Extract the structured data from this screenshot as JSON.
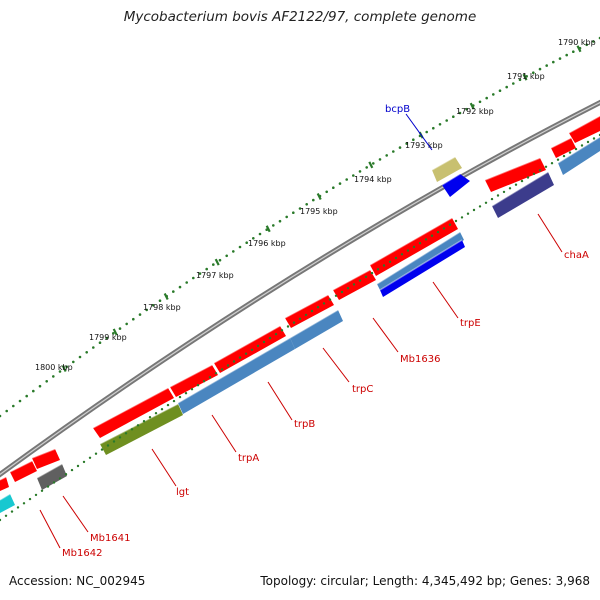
{
  "title": "Mycobacterium bovis AF2122/97, complete genome",
  "footer": {
    "accession": "Accession: NC_002945",
    "summary": "Topology: circular; Length: 4,345,492 bp; Genes: 3,968"
  },
  "map": {
    "kbp_ticks": [
      {
        "label": "1790 kbp"
      },
      {
        "label": "1791 kbp"
      },
      {
        "label": "1792 kbp"
      },
      {
        "label": "1793 kbp"
      },
      {
        "label": "1794 kbp"
      },
      {
        "label": "1795 kbp"
      },
      {
        "label": "1796 kbp"
      },
      {
        "label": "1797 kbp"
      },
      {
        "label": "1798 kbp"
      },
      {
        "label": "1799 kbp"
      },
      {
        "label": "1800 kbp"
      }
    ],
    "gene_labels": [
      {
        "name": "bcpB",
        "color": "#0000cc"
      },
      {
        "name": "chaA",
        "color": "#cc0000"
      },
      {
        "name": "trpE",
        "color": "#cc0000"
      },
      {
        "name": "Mb1636",
        "color": "#cc0000"
      },
      {
        "name": "trpC",
        "color": "#cc0000"
      },
      {
        "name": "trpB",
        "color": "#cc0000"
      },
      {
        "name": "trpA",
        "color": "#cc0000"
      },
      {
        "name": "lgt",
        "color": "#cc0000"
      },
      {
        "name": "Mb1641",
        "color": "#cc0000"
      },
      {
        "name": "Mb1642",
        "color": "#cc0000"
      }
    ],
    "colors": {
      "cds_red": "#ff0000",
      "blue_feature": "#0000ee",
      "steel_blue": "#4a86c0",
      "navy": "#3c3c8c",
      "olive": "#6f8f20",
      "khaki": "#c8c070",
      "gray": "#606060",
      "cyan": "#18c8d0",
      "backbone": "#777777",
      "tick_green": "#2a7a2a",
      "label_red": "#cc0000",
      "label_blue": "#0000cc"
    }
  }
}
